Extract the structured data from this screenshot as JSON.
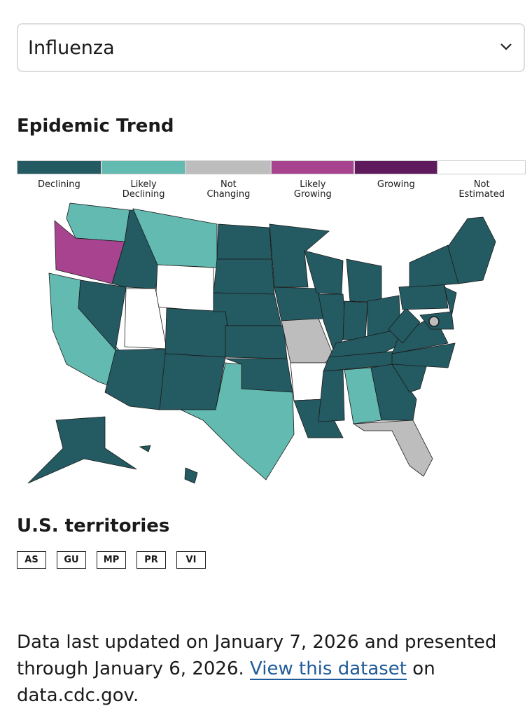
{
  "dropdown": {
    "selected": "Influenza"
  },
  "heading": "Epidemic Trend",
  "legend": {
    "items": [
      {
        "label": "Declining",
        "color": "#245a62"
      },
      {
        "label": "Likely Declining",
        "color": "#62bab0"
      },
      {
        "label": "Not Changing",
        "color": "#bdbdbd"
      },
      {
        "label": "Likely Growing",
        "color": "#a8448f"
      },
      {
        "label": "Growing",
        "color": "#5e1a5c"
      },
      {
        "label": "Not Estimated",
        "color": "#ffffff"
      }
    ]
  },
  "territories": {
    "title": "U.S. territories",
    "items": [
      "AS",
      "GU",
      "MP",
      "PR",
      "VI"
    ]
  },
  "footer": {
    "text_before": "Data last updated on January 7, 2026 and presented through January 6, 2026.",
    "link": "View this dataset",
    "text_after": "on data.cdc.gov."
  }
}
